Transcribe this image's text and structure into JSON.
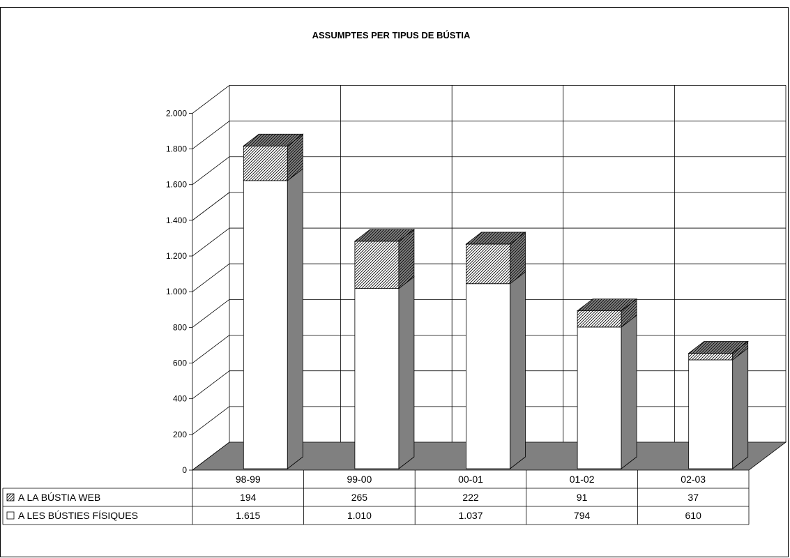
{
  "chart_data": {
    "type": "bar",
    "stacked": true,
    "three_d": true,
    "title": "ASSUMPTES PER TIPUS DE BÚSTIA",
    "categories": [
      "98-99",
      "99-00",
      "00-01",
      "01-02",
      "02-03"
    ],
    "series": [
      {
        "name": "A LES BÚSTIES FÍSIQUES",
        "values": [
          1615,
          1010,
          1037,
          794,
          610
        ],
        "value_labels": [
          "1.615",
          "1.010",
          "1.037",
          "794",
          "610"
        ],
        "fill": "#ffffff"
      },
      {
        "name": "A LA BÚSTIA WEB",
        "values": [
          194,
          265,
          222,
          91,
          37
        ],
        "value_labels": [
          "194",
          "265",
          "222",
          "91",
          "37"
        ],
        "fill": "hatched"
      }
    ],
    "ylim": [
      0,
      2000
    ],
    "yticks": [
      0,
      200,
      400,
      600,
      800,
      1000,
      1200,
      1400,
      1600,
      1800,
      2000
    ],
    "ytick_labels": [
      "0",
      "200",
      "400",
      "600",
      "800",
      "1.000",
      "1.200",
      "1.400",
      "1.600",
      "1.800",
      "2.000"
    ],
    "grid": true,
    "legend": "data-table",
    "colors": {
      "side": "#808080",
      "floor": "#808080",
      "line": "#000000",
      "background": "#ffffff"
    }
  }
}
